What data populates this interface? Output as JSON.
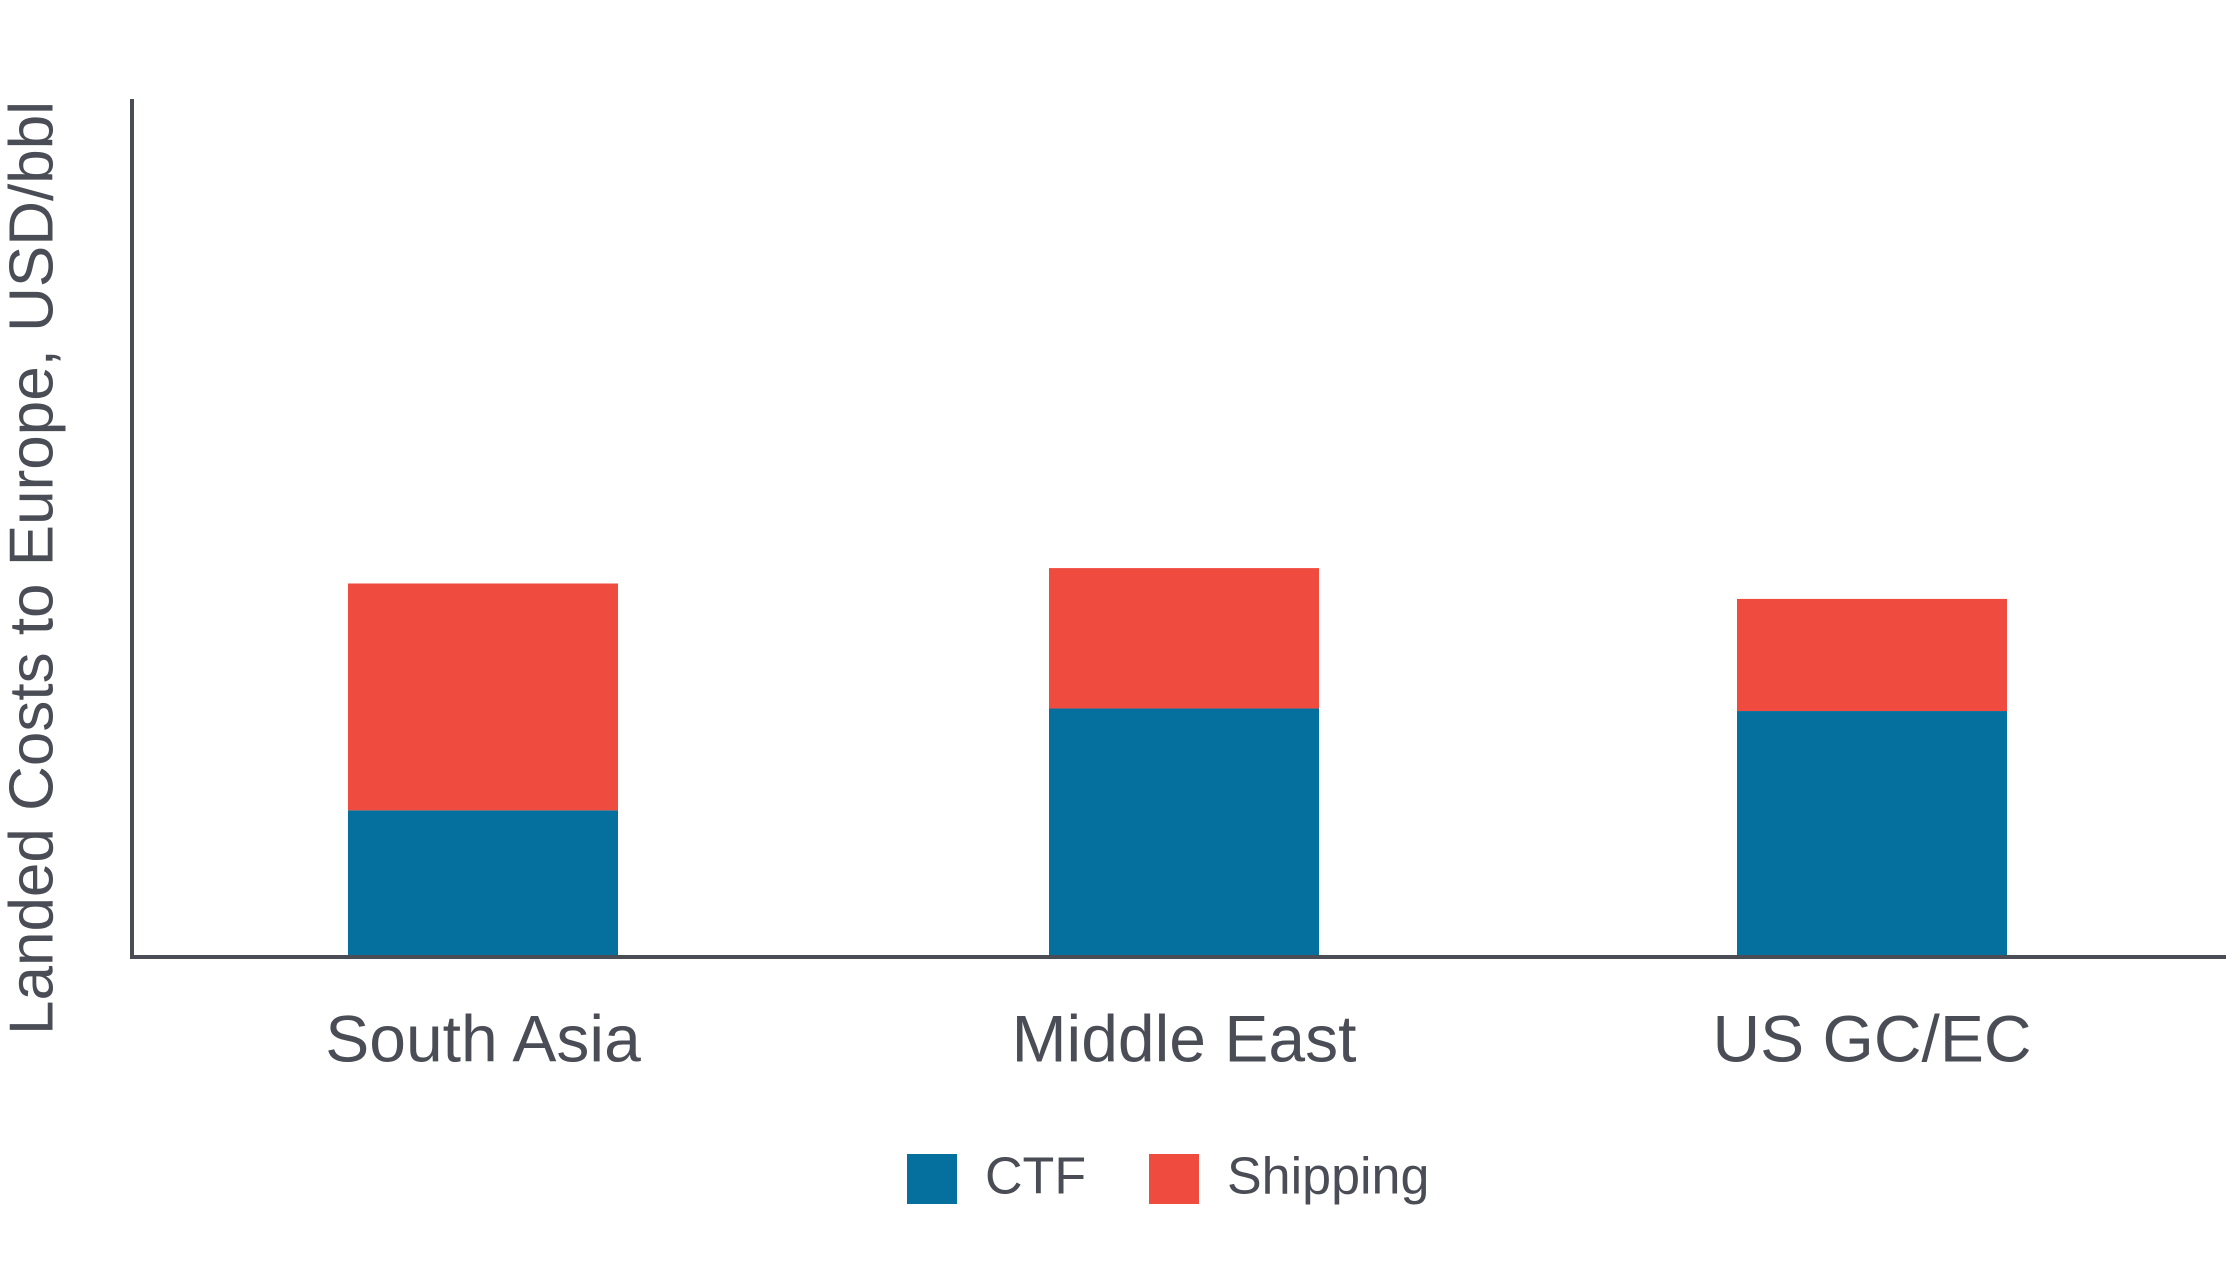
{
  "chart_data": {
    "type": "stacked_bar",
    "y_label": "Landed Costs to Europe, USD/bbl",
    "categories": [
      "South Asia",
      "Middle East",
      "US GC/EC"
    ],
    "series": [
      {
        "name": "CTF",
        "color": "#05709e",
        "values": [
          16.9,
          28.8,
          28.5
        ]
      },
      {
        "name": "Shipping",
        "color": "#ef4b3f",
        "values": [
          26.5,
          16.4,
          13.1
        ]
      }
    ],
    "ylim": [
      0,
      100
    ],
    "legend": "bottom"
  }
}
